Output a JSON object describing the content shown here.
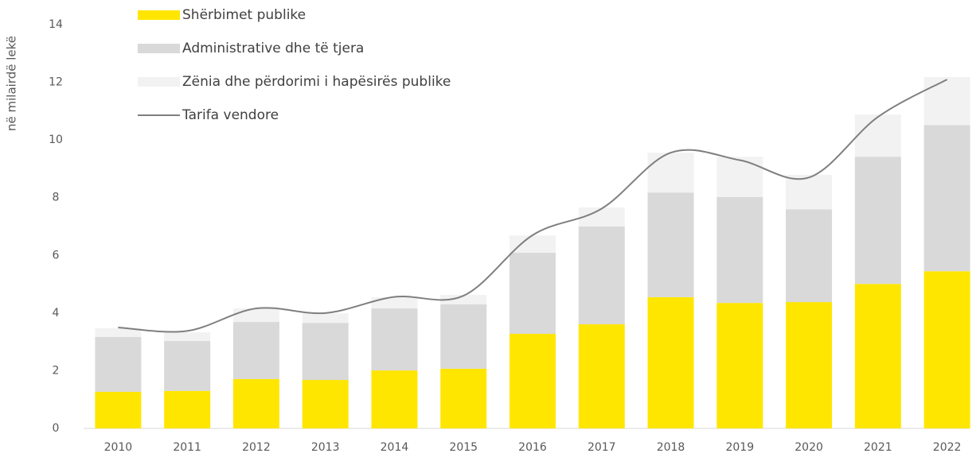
{
  "chart_data": {
    "type": "bar",
    "stacked": true,
    "ylabel": "në milairdë lekë",
    "categories": [
      "2010",
      "2011",
      "2012",
      "2013",
      "2014",
      "2015",
      "2016",
      "2017",
      "2018",
      "2019",
      "2020",
      "2021",
      "2022"
    ],
    "series": [
      {
        "name": "Shërbimet publike",
        "color": "#ffe600",
        "values": [
          1.27,
          1.3,
          1.71,
          1.68,
          2.01,
          2.07,
          3.28,
          3.61,
          4.55,
          4.35,
          4.38,
          5.01,
          5.45
        ]
      },
      {
        "name": "Administrative dhe të tjera",
        "color": "#d9d9d9",
        "values": [
          1.9,
          1.73,
          1.98,
          1.98,
          2.15,
          2.23,
          2.81,
          3.39,
          3.63,
          3.67,
          3.22,
          4.41,
          5.07
        ]
      },
      {
        "name": "Zënia dhe përdorimi i hapësirës publike",
        "color": "#f2f2f2",
        "values": [
          0.3,
          0.3,
          0.47,
          0.33,
          0.39,
          0.33,
          0.6,
          0.66,
          1.38,
          1.4,
          1.19,
          1.46,
          1.66
        ]
      },
      {
        "name": "Tarifa vendore",
        "type": "line",
        "color": "#7f7f7f",
        "values": [
          3.5,
          3.38,
          4.16,
          4.0,
          4.56,
          4.6,
          6.7,
          7.62,
          9.56,
          9.3,
          8.7,
          10.8,
          12.1
        ]
      }
    ],
    "ylim": [
      0,
      14
    ],
    "yticks": [
      0,
      2,
      4,
      6,
      8,
      10,
      12,
      14
    ],
    "grid": false
  }
}
